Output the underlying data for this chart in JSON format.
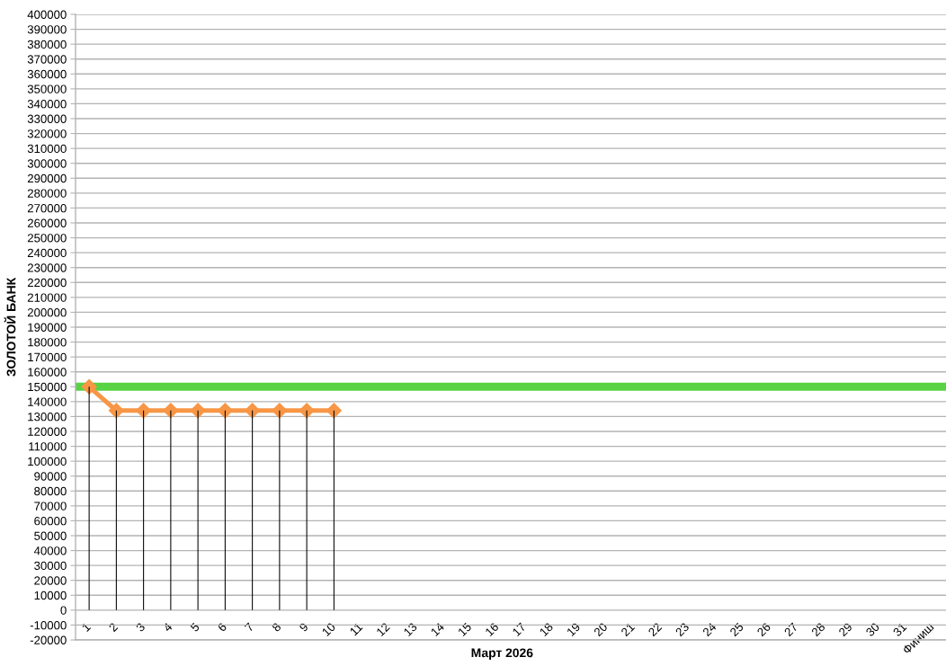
{
  "chart_data": {
    "type": "line",
    "xlabel": "Март 2026",
    "ylabel": "ЗОЛОТОЙ БАНК",
    "categories": [
      "1",
      "2",
      "3",
      "4",
      "5",
      "6",
      "7",
      "8",
      "9",
      "10",
      "11",
      "12",
      "13",
      "14",
      "15",
      "16",
      "17",
      "18",
      "19",
      "20",
      "21",
      "22",
      "23",
      "24",
      "25",
      "26",
      "27",
      "28",
      "29",
      "30",
      "31",
      "Финиш"
    ],
    "series": [
      {
        "color": "#f79646",
        "values": [
          150000,
          134000,
          134000,
          134000,
          134000,
          134000,
          134000,
          134000,
          134000,
          134000,
          null,
          null,
          null,
          null,
          null,
          null,
          null,
          null,
          null,
          null,
          null,
          null,
          null,
          null,
          null,
          null,
          null,
          null,
          null,
          null,
          null,
          null
        ]
      },
      {
        "type": "bar",
        "color": "#000000",
        "values": [
          150000,
          134000,
          134000,
          134000,
          134000,
          134000,
          134000,
          134000,
          134000,
          134000,
          null,
          null,
          null,
          null,
          null,
          null,
          null,
          null,
          null,
          null,
          null,
          null,
          null,
          null,
          null,
          null,
          null,
          null,
          null,
          null,
          null,
          null
        ]
      }
    ],
    "ylim": [
      -20000,
      400000
    ],
    "yticks": [
      -20000,
      -10000,
      0,
      10000,
      20000,
      30000,
      40000,
      50000,
      60000,
      70000,
      80000,
      90000,
      100000,
      110000,
      120000,
      130000,
      140000,
      150000,
      160000,
      170000,
      180000,
      190000,
      200000,
      210000,
      220000,
      230000,
      240000,
      250000,
      260000,
      270000,
      280000,
      290000,
      300000,
      310000,
      320000,
      330000,
      340000,
      350000,
      360000,
      370000,
      380000,
      390000,
      400000
    ],
    "ref_lines": [
      {
        "axis": "y",
        "value": 150000,
        "color": "#57d343"
      }
    ],
    "grid": "y",
    "marker": "diamond",
    "line_style": "solid"
  }
}
